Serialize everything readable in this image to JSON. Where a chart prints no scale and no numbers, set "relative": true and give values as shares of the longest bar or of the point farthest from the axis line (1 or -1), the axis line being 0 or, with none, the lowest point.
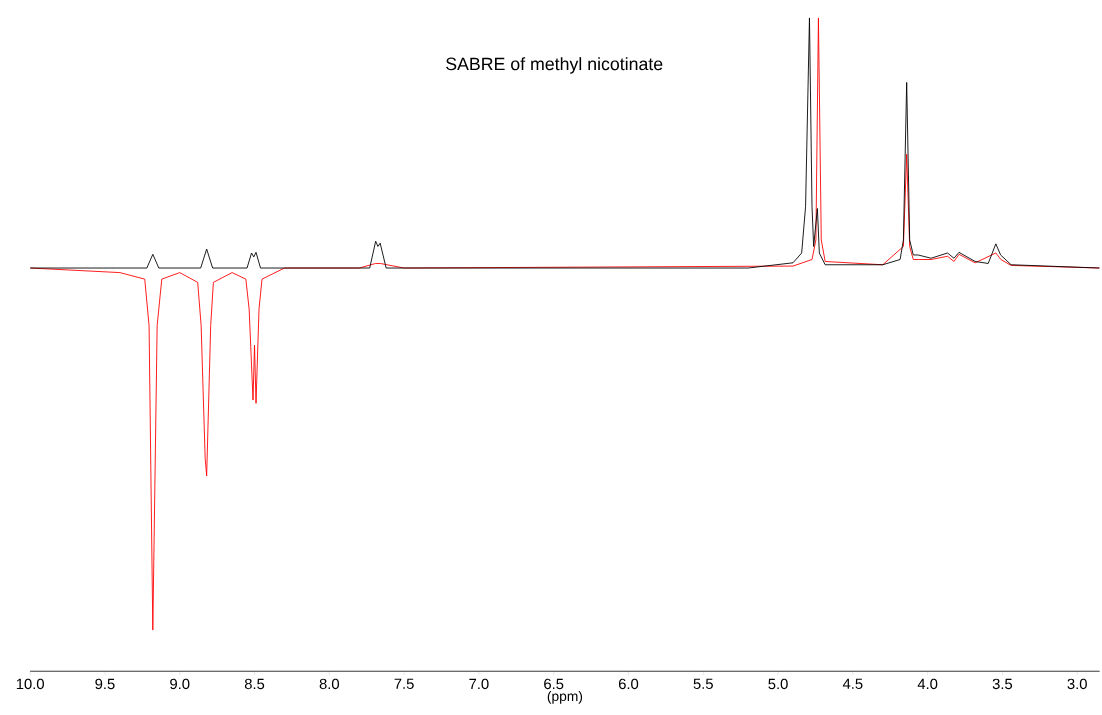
{
  "chart_data": {
    "type": "line",
    "title": "SABRE of methyl nicotinate",
    "xlabel": "(ppm)",
    "relative": true,
    "marker": "none",
    "line_style": "solid",
    "xlim": [
      10.0,
      2.85
    ],
    "xticks": [
      {
        "value": 10.0,
        "label": "10.0"
      },
      {
        "value": 9.5,
        "label": "9.5"
      },
      {
        "value": 9.0,
        "label": "9.0"
      },
      {
        "value": 8.5,
        "label": "8.5"
      },
      {
        "value": 8.0,
        "label": "8.0"
      },
      {
        "value": 7.5,
        "label": "7.5"
      },
      {
        "value": 7.0,
        "label": "7.0"
      },
      {
        "value": 6.5,
        "label": "6.5"
      },
      {
        "value": 6.0,
        "label": "6.0"
      },
      {
        "value": 5.5,
        "label": "5.5"
      },
      {
        "value": 5.0,
        "label": "5.0"
      },
      {
        "value": 4.5,
        "label": "4.5"
      },
      {
        "value": 4.0,
        "label": "4.0"
      },
      {
        "value": 3.5,
        "label": "3.5"
      },
      {
        "value": 3.0,
        "label": "3.0"
      }
    ],
    "series": [
      {
        "color": "#ff0000",
        "x": [
          10.0,
          9.4,
          9.234,
          9.205,
          9.18,
          9.151,
          9.12,
          9.0,
          8.88,
          8.857,
          8.83,
          8.82,
          8.793,
          8.775,
          8.65,
          8.558,
          8.536,
          8.51,
          8.5,
          8.49,
          8.47,
          8.45,
          8.3,
          7.8,
          7.69,
          7.66,
          7.5,
          4.9,
          4.773,
          4.747,
          4.73,
          4.711,
          4.685,
          4.3,
          4.162,
          4.14,
          4.12,
          4.096,
          3.977,
          3.867,
          3.824,
          3.79,
          3.682,
          3.544,
          3.51,
          3.442,
          2.85
        ],
        "values": [
          0.617,
          0.61,
          0.6,
          0.529,
          0.063,
          0.529,
          0.6,
          0.61,
          0.595,
          0.529,
          0.326,
          0.299,
          0.529,
          0.595,
          0.61,
          0.6,
          0.554,
          0.415,
          0.499,
          0.41,
          0.554,
          0.6,
          0.617,
          0.617,
          0.624,
          0.624,
          0.617,
          0.62,
          0.63,
          0.66,
          1,
          0.66,
          0.627,
          0.622,
          0.65,
          0.791,
          0.65,
          0.63,
          0.63,
          0.635,
          0.627,
          0.638,
          0.625,
          0.64,
          0.63,
          0.621,
          0.617
        ]
      },
      {
        "color": "#000000",
        "x": [
          10.0,
          9.22,
          9.18,
          9.14,
          8.86,
          8.82,
          8.78,
          8.55,
          8.52,
          8.505,
          8.49,
          8.46,
          7.73,
          7.69,
          7.675,
          7.66,
          7.62,
          5.2,
          4.9,
          4.842,
          4.816,
          4.79,
          4.773,
          4.762,
          4.737,
          4.724,
          4.685,
          4.3,
          4.184,
          4.162,
          4.14,
          4.12,
          4.096,
          4.064,
          3.977,
          3.867,
          3.824,
          3.79,
          3.682,
          3.595,
          3.544,
          3.512,
          3.442,
          2.85
        ],
        "values": [
          0.617,
          0.617,
          0.638,
          0.617,
          0.617,
          0.646,
          0.617,
          0.617,
          0.64,
          0.634,
          0.641,
          0.617,
          0.617,
          0.658,
          0.65,
          0.655,
          0.617,
          0.617,
          0.625,
          0.64,
          0.711,
          1,
          0.711,
          0.65,
          0.708,
          0.64,
          0.622,
          0.622,
          0.63,
          0.66,
          0.901,
          0.66,
          0.637,
          0.637,
          0.632,
          0.64,
          0.632,
          0.641,
          0.627,
          0.624,
          0.654,
          0.637,
          0.622,
          0.617
        ]
      }
    ]
  }
}
